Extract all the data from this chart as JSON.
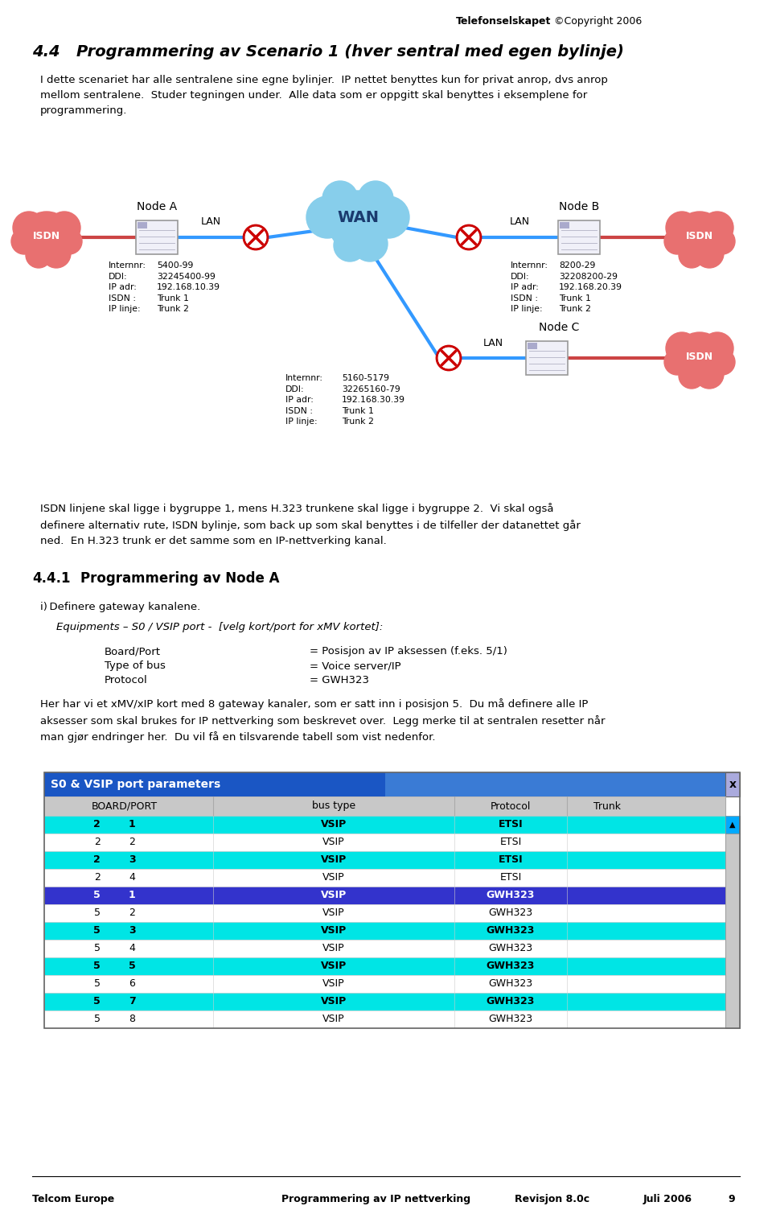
{
  "title_header_bold": "Telefonselskapet",
  "title_header_normal": " ©Copyright 2006",
  "section_num": "4.4",
  "section_title": "Programmering av Scenario 1 (hver sentral med egen bylinje)",
  "intro_text": "I dette scenariet har alle sentralene sine egne bylinjer.  IP nettet benyttes kun for privat anrop, dvs anrop\nmellom sentralene.  Studer tegningen under.  Alle data som er oppgitt skal benyttes i eksemplene for\nprogrammering.",
  "node_a_label": "Node A",
  "node_b_label": "Node B",
  "node_c_label": "Node C",
  "isdn_label": "ISDN",
  "lan_label": "LAN",
  "wan_label": "WAN",
  "node_a_info_label": "Internnr:\nDDI:\nIP adr:\nISDN :\nIP linje:",
  "node_a_info_val": "5400-99\n32245400-99\n192.168.10.39\nTrunk 1\nTrunk 2",
  "node_b_info_label": "Internnr:\nDDI:\nIP adr:\nISDN :\nIP linje:",
  "node_b_info_val": "8200-29\n32208200-29\n192.168.20.39\nTrunk 1\nTrunk 2",
  "node_c_info_label": "Internnr:\nDDI:\nIP adr:\nISDN :\nIP linje:",
  "node_c_info_val": "5160-5179\n32265160-79\n192.168.30.39\nTrunk 1\nTrunk 2",
  "section_41": "4.4.1",
  "section_41_title": "Programmering av Node A",
  "step_i": "i) Definere gateway kanalene.",
  "equip_line": "Equipments – S0 / VSIP port -  [velg kort/port for xMV kortet]:",
  "board_port_label": "Board/Port",
  "board_port_val": "= Posisjon av IP aksessen (f.eks. 5/1)",
  "type_bus_label": "Type of bus",
  "type_bus_val": "= Voice server/IP",
  "protocol_label": "Protocol",
  "protocol_val": "= GWH323",
  "para_text": "Her har vi et xMV/xIP kort med 8 gateway kanaler, som er satt inn i posisjon 5.  Du må definere alle IP\naksesser som skal brukes for IP nettverking som beskrevet over.  Legg merke til at sentralen resetter når\nman gjør endringer her.  Du vil få en tilsvarende tabell som vist nedenfor.",
  "body1_text": "ISDN linjene skal ligge i bygruppe 1, mens H.323 trunkene skal ligge i bygruppe 2.  Vi skal også\ndefinere alternativ rute, ISDN bylinje, som back up som skal benyttes i de tilfeller der datanettet går\nned.  En H.323 trunk er det samme som en IP-nettverking kanal.",
  "table_title": "S0 & VSIP port parameters",
  "table_headers": [
    "BOARD/PORT",
    "bus type",
    "Protocol",
    "Trunk"
  ],
  "table_rows": [
    [
      "2",
      "1",
      "VSIP",
      "ETSI"
    ],
    [
      "2",
      "2",
      "VSIP",
      "ETSI"
    ],
    [
      "2",
      "3",
      "VSIP",
      "ETSI"
    ],
    [
      "2",
      "4",
      "VSIP",
      "ETSI"
    ],
    [
      "5",
      "1",
      "VSIP",
      "GWH323"
    ],
    [
      "5",
      "2",
      "VSIP",
      "GWH323"
    ],
    [
      "5",
      "3",
      "VSIP",
      "GWH323"
    ],
    [
      "5",
      "4",
      "VSIP",
      "GWH323"
    ],
    [
      "5",
      "5",
      "VSIP",
      "GWH323"
    ],
    [
      "5",
      "6",
      "VSIP",
      "GWH323"
    ],
    [
      "5",
      "7",
      "VSIP",
      "GWH323"
    ],
    [
      "5",
      "8",
      "VSIP",
      "GWH323"
    ]
  ],
  "table_row_highlight": [
    true,
    false,
    true,
    false,
    false,
    false,
    true,
    false,
    true,
    false,
    true,
    false
  ],
  "table_row_selected": [
    false,
    false,
    false,
    false,
    true,
    false,
    false,
    false,
    false,
    false,
    false,
    false
  ],
  "footer_left": "Telcom Europe",
  "footer_mid": "Programmering av IP nettverking",
  "footer_rev": "Revisjon 8.0c",
  "footer_date": "Juli 2006",
  "footer_page": "9",
  "bg_color": "#ffffff",
  "isdn_cloud_color": "#e87070",
  "wan_cloud_color": "#87ceeb",
  "line_color": "#3399ff",
  "isdn_line_color": "#cc4444",
  "router_color": "#cc0000",
  "router_fill": "#ffffff",
  "pbx_fill": "#f0f0f8",
  "pbx_edge": "#999999",
  "table_title_bg1": "#1a56c4",
  "table_title_bg2": "#3a7bd5",
  "table_title_bg_right": "#7777cc",
  "table_header_bg": "#c8c8c8",
  "table_row_cyan": "#00e5e5",
  "table_row_blue": "#3333cc",
  "table_row_blue_text": "#ffffff",
  "table_row_white": "#ffffff",
  "table_border": "#888888",
  "table_x_btn": "#cc0000",
  "scrollbar_bg": "#c8c8c8",
  "scrollbar_up": "#00aaff"
}
